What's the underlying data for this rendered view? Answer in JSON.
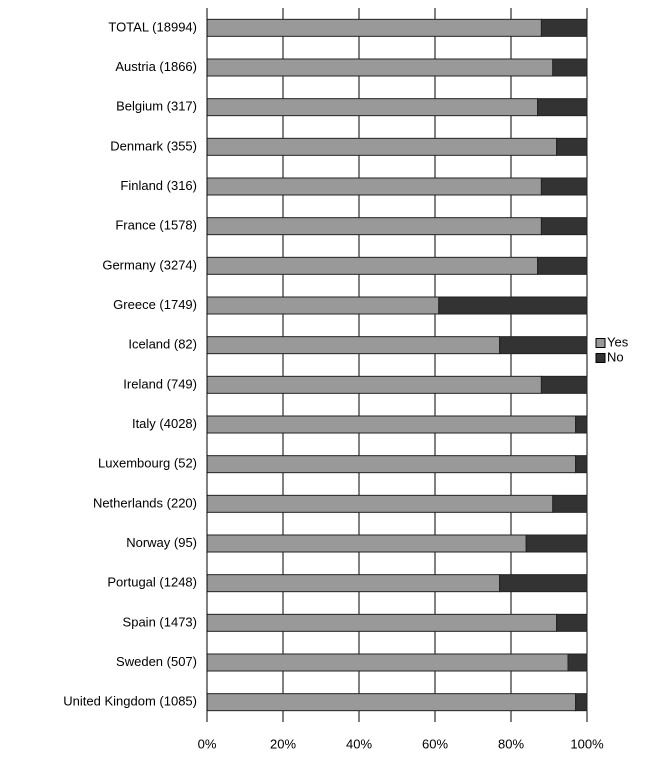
{
  "chart_data": {
    "type": "stacked-bar-horizontal",
    "categories": [
      "TOTAL (18994)",
      "Austria (1866)",
      "Belgium (317)",
      "Denmark (355)",
      "Finland (316)",
      "France (1578)",
      "Germany (3274)",
      "Greece (1749)",
      "Iceland (82)",
      "Ireland (749)",
      "Italy (4028)",
      "Luxembourg (52)",
      "Netherlands (220)",
      "Norway (95)",
      "Portugal (1248)",
      "Spain (1473)",
      "Sweden (507)",
      "United Kingdom (1085)"
    ],
    "series": [
      {
        "name": "Yes",
        "color": "#999999",
        "values": [
          88,
          91,
          87,
          92,
          88,
          88,
          87,
          61,
          77,
          88,
          97,
          97,
          91,
          84,
          77,
          92,
          95,
          97
        ]
      },
      {
        "name": "No",
        "color": "#333333",
        "values": [
          12,
          9,
          13,
          8,
          12,
          12,
          13,
          39,
          23,
          12,
          3,
          3,
          9,
          16,
          23,
          8,
          5,
          3
        ]
      }
    ],
    "xlim": [
      0,
      100
    ],
    "xticks": [
      {
        "value": 0,
        "label": "0%"
      },
      {
        "value": 20,
        "label": "20%"
      },
      {
        "value": 40,
        "label": "40%"
      },
      {
        "value": 60,
        "label": "60%"
      },
      {
        "value": 80,
        "label": "80%"
      },
      {
        "value": 100,
        "label": "100%"
      }
    ],
    "grid": true,
    "legend": "right"
  }
}
